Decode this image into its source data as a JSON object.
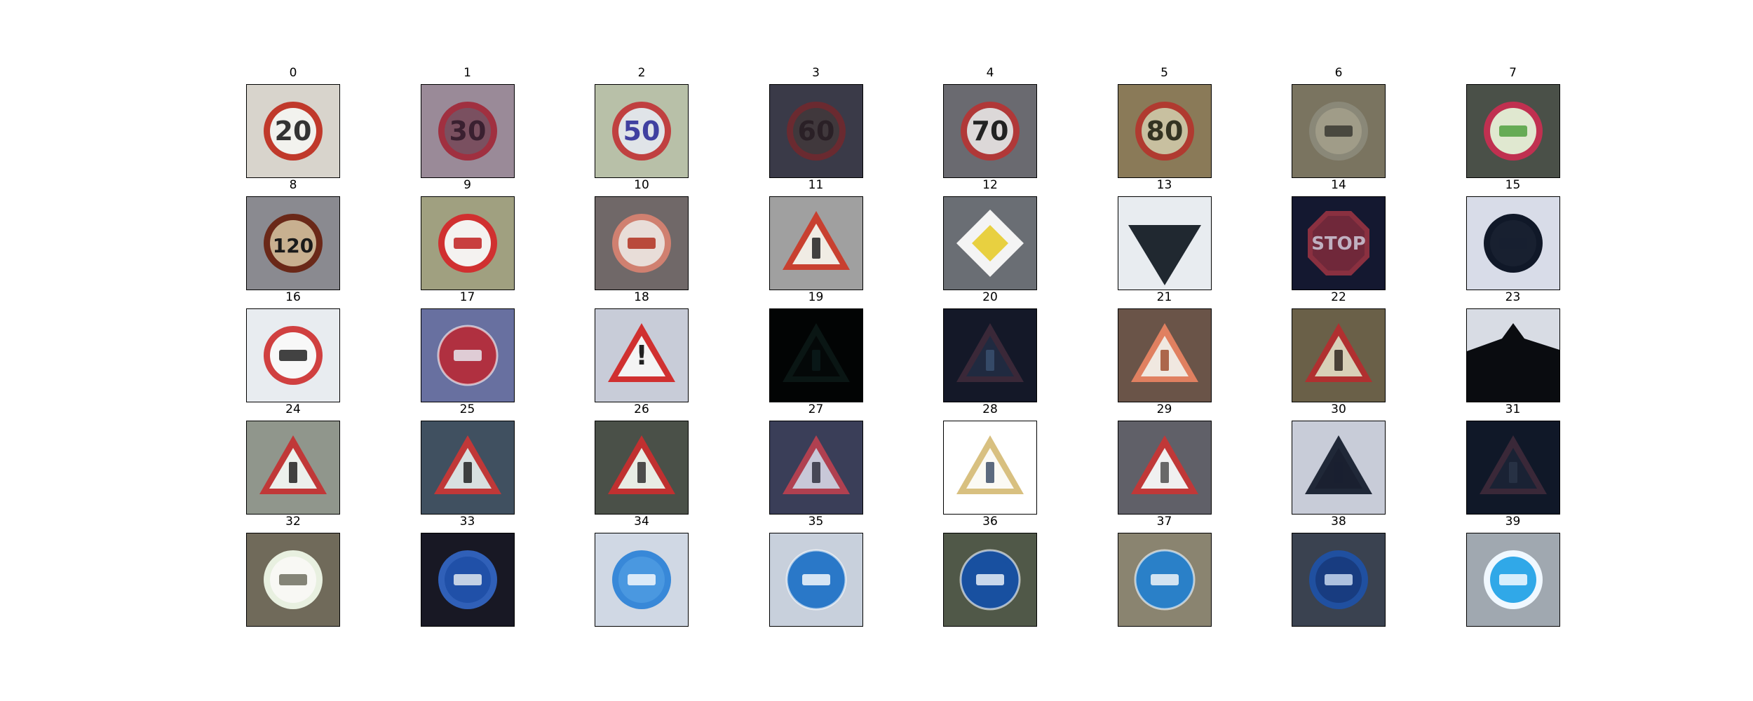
{
  "figure": {
    "panels": [
      {
        "label": "0",
        "sign": "speed-limit-20",
        "sign_text": "20",
        "bg": "#d8d4cc",
        "shape": "circle",
        "rim": "#c0392b",
        "fill": "#f2f2ee",
        "symbol_color": "#333333"
      },
      {
        "label": "1",
        "sign": "speed-limit-30",
        "sign_text": "30",
        "bg": "#9a8a98",
        "shape": "circle",
        "rim": "#a03040",
        "fill": "#7a5060",
        "symbol_color": "#3a2030"
      },
      {
        "label": "2",
        "sign": "speed-limit-50",
        "sign_text": "50",
        "bg": "#b8c0a8",
        "shape": "circle",
        "rim": "#c04040",
        "fill": "#e0e4e8",
        "symbol_color": "#4040a0"
      },
      {
        "label": "3",
        "sign": "speed-limit-60",
        "sign_text": "60",
        "bg": "#3a3a48",
        "shape": "circle",
        "rim": "#6a2a30",
        "fill": "#40383c",
        "symbol_color": "#2a2026"
      },
      {
        "label": "4",
        "sign": "speed-limit-70",
        "sign_text": "70",
        "bg": "#6a6a70",
        "shape": "circle",
        "rim": "#b03838",
        "fill": "#dcd8d8",
        "symbol_color": "#222222"
      },
      {
        "label": "5",
        "sign": "speed-limit-80",
        "sign_text": "80",
        "bg": "#8a7a58",
        "shape": "circle",
        "rim": "#b03a30",
        "fill": "#c8c0a0",
        "symbol_color": "#333322"
      },
      {
        "label": "6",
        "sign": "end-speed-limit-80",
        "sign_text": "",
        "bg": "#7a7460",
        "shape": "circle",
        "rim": "#8a8878",
        "fill": "#a09c88",
        "symbol_color": "#3a3a32"
      },
      {
        "label": "7",
        "sign": "speed-limit-100",
        "sign_text": "",
        "bg": "#4a5048",
        "shape": "circle",
        "rim": "#c03050",
        "fill": "#e0e8d0",
        "symbol_color": "#50a040"
      },
      {
        "label": "8",
        "sign": "speed-limit-120",
        "sign_text": "120",
        "bg": "#8a8a90",
        "shape": "circle",
        "rim": "#6a2818",
        "fill": "#c8b090",
        "symbol_color": "#1a1a1a"
      },
      {
        "label": "9",
        "sign": "no-passing",
        "sign_text": "",
        "bg": "#a0a080",
        "shape": "circle",
        "rim": "#d03030",
        "fill": "#f4f2f0",
        "symbol_color": "#c02020"
      },
      {
        "label": "10",
        "sign": "no-passing-trucks",
        "sign_text": "",
        "bg": "#706868",
        "shape": "circle",
        "rim": "#d08070",
        "fill": "#e8ddd8",
        "symbol_color": "#b03020"
      },
      {
        "label": "11",
        "sign": "right-of-way",
        "sign_text": "",
        "bg": "#a0a0a0",
        "shape": "triangle",
        "rim": "#c84030",
        "fill": "#f0ece4",
        "symbol_color": "#222222"
      },
      {
        "label": "12",
        "sign": "priority-road",
        "sign_text": "",
        "bg": "#6a6e74",
        "shape": "diamond",
        "rim": "#f4f4f4",
        "fill": "#e8d040",
        "symbol_color": "#e8d040"
      },
      {
        "label": "13",
        "sign": "yield",
        "sign_text": "",
        "bg": "#e8ecf0",
        "shape": "yield",
        "rim": "#101418",
        "fill": "#202830",
        "symbol_color": "#202830"
      },
      {
        "label": "14",
        "sign": "stop",
        "sign_text": "STOP",
        "bg": "#141830",
        "shape": "octagon",
        "rim": "#8a3040",
        "fill": "#70283a",
        "symbol_color": "#c0b0c0"
      },
      {
        "label": "15",
        "sign": "no-vehicles",
        "sign_text": "",
        "bg": "#d8dce8",
        "shape": "circle",
        "rim": "#101828",
        "fill": "#182030",
        "symbol_color": "#182030"
      },
      {
        "label": "16",
        "sign": "no-trucks",
        "sign_text": "",
        "bg": "#e8ecf0",
        "shape": "circle",
        "rim": "#d04040",
        "fill": "#f8f8f8",
        "symbol_color": "#222222"
      },
      {
        "label": "17",
        "sign": "no-entry",
        "sign_text": "",
        "bg": "#6870a0",
        "shape": "circle",
        "rim": "#b03040",
        "fill": "#b03040",
        "symbol_color": "#e8e8f0"
      },
      {
        "label": "18",
        "sign": "general-caution",
        "sign_text": "!",
        "bg": "#c8ccd8",
        "shape": "triangle",
        "rim": "#d03030",
        "fill": "#f4f4f4",
        "symbol_color": "#222222"
      },
      {
        "label": "19",
        "sign": "curve-left",
        "sign_text": "",
        "bg": "#020404",
        "shape": "triangle",
        "rim": "#0a1614",
        "fill": "#040808",
        "symbol_color": "#0a1a1a"
      },
      {
        "label": "20",
        "sign": "curve-right",
        "sign_text": "",
        "bg": "#141828",
        "shape": "triangle",
        "rim": "#3a2838",
        "fill": "#202a40",
        "symbol_color": "#3a5070"
      },
      {
        "label": "21",
        "sign": "double-curve",
        "sign_text": "",
        "bg": "#6a5448",
        "shape": "triangle",
        "rim": "#e08060",
        "fill": "#f0e8e0",
        "symbol_color": "#a05030"
      },
      {
        "label": "22",
        "sign": "bumpy-road",
        "sign_text": "",
        "bg": "#6a6048",
        "shape": "triangle",
        "rim": "#b03030",
        "fill": "#d8d0b8",
        "symbol_color": "#302820"
      },
      {
        "label": "23",
        "sign": "slippery-road",
        "sign_text": "",
        "bg": "#d8dce4",
        "shape": "hill",
        "rim": "#0a0c10",
        "fill": "#0a0c10",
        "symbol_color": "#0a0c10"
      },
      {
        "label": "24",
        "sign": "road-narrows",
        "sign_text": "",
        "bg": "#90968c",
        "shape": "triangle",
        "rim": "#c03838",
        "fill": "#ecf0ec",
        "symbol_color": "#222222"
      },
      {
        "label": "25",
        "sign": "road-work",
        "sign_text": "",
        "bg": "#405060",
        "shape": "triangle",
        "rim": "#c03838",
        "fill": "#d8e0e0",
        "symbol_color": "#222222"
      },
      {
        "label": "26",
        "sign": "traffic-signals",
        "sign_text": "",
        "bg": "#4a5048",
        "shape": "triangle",
        "rim": "#c03030",
        "fill": "#e8ece4",
        "symbol_color": "#303030"
      },
      {
        "label": "27",
        "sign": "pedestrians",
        "sign_text": "",
        "bg": "#3a3e58",
        "shape": "triangle",
        "rim": "#b04050",
        "fill": "#c8c8d8",
        "symbol_color": "#303040"
      },
      {
        "label": "28",
        "sign": "children-crossing",
        "sign_text": "",
        "bg": "#ffffff",
        "shape": "triangle",
        "rim": "#d8c080",
        "fill": "#fbfaf4",
        "symbol_color": "#405068"
      },
      {
        "label": "29",
        "sign": "bicycles-crossing",
        "sign_text": "",
        "bg": "#606068",
        "shape": "triangle",
        "rim": "#c03838",
        "fill": "#f0f0f0",
        "symbol_color": "#505050"
      },
      {
        "label": "30",
        "sign": "beware-ice-snow",
        "sign_text": "",
        "bg": "#c8ccd8",
        "shape": "triangle",
        "rim": "#202838",
        "fill": "#1a2030",
        "symbol_color": "#1a2030"
      },
      {
        "label": "31",
        "sign": "wild-animals",
        "sign_text": "",
        "bg": "#101828",
        "shape": "triangle",
        "rim": "#3a2838",
        "fill": "#1a2234",
        "symbol_color": "#2a3448"
      },
      {
        "label": "32",
        "sign": "end-all-limits",
        "sign_text": "",
        "bg": "#706a5a",
        "shape": "circle",
        "rim": "#e8f0e0",
        "fill": "#f8f8f4",
        "symbol_color": "#707060"
      },
      {
        "label": "33",
        "sign": "turn-right-ahead",
        "sign_text": "",
        "bg": "#181824",
        "shape": "circle",
        "rim": "#3060b8",
        "fill": "#2050a8",
        "symbol_color": "#e0e8f0"
      },
      {
        "label": "34",
        "sign": "turn-left-ahead",
        "sign_text": "",
        "bg": "#d0d8e4",
        "shape": "circle",
        "rim": "#3888d8",
        "fill": "#4a98e0",
        "symbol_color": "#f4f8fc"
      },
      {
        "label": "35",
        "sign": "ahead-only",
        "sign_text": "",
        "bg": "#c8d0dc",
        "shape": "circle",
        "rim": "#2a78c8",
        "fill": "#2a78c8",
        "symbol_color": "#f4f8fc"
      },
      {
        "label": "36",
        "sign": "go-straight-or-right",
        "sign_text": "",
        "bg": "#505848",
        "shape": "circle",
        "rim": "#1850a0",
        "fill": "#1850a0",
        "symbol_color": "#e8eef8"
      },
      {
        "label": "37",
        "sign": "go-straight-or-left",
        "sign_text": "",
        "bg": "#8a8470",
        "shape": "circle",
        "rim": "#2a80c8",
        "fill": "#2a80c8",
        "symbol_color": "#f0f4f8"
      },
      {
        "label": "38",
        "sign": "keep-right",
        "sign_text": "",
        "bg": "#3a4250",
        "shape": "circle",
        "rim": "#2050a0",
        "fill": "#183c80",
        "symbol_color": "#c8d8f0"
      },
      {
        "label": "39",
        "sign": "keep-left",
        "sign_text": "",
        "bg": "#a0a8b0",
        "shape": "circle",
        "rim": "#f0f8ff",
        "fill": "#30a8e8",
        "symbol_color": "#f4faff"
      }
    ]
  }
}
